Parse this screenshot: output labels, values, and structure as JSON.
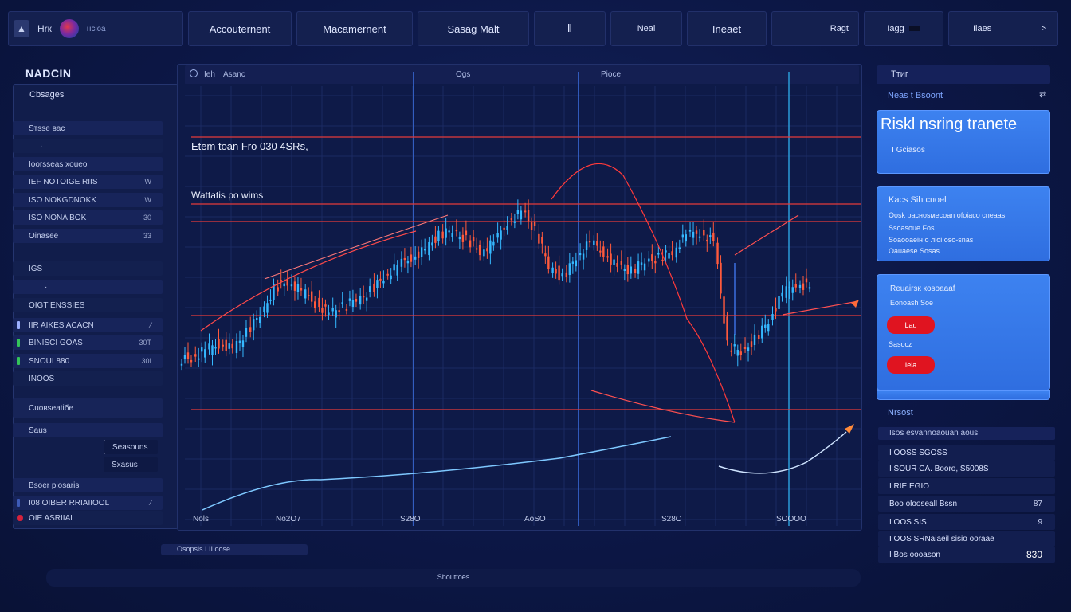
{
  "topbar": {
    "brand_text": "Hrк",
    "brand_sub": "нсюа",
    "items": [
      {
        "label": "Accouternent"
      },
      {
        "label": "Macamernent"
      },
      {
        "label": "Sasag Malt"
      },
      {
        "label": "Ⅱ"
      },
      {
        "label": "Neal"
      },
      {
        "label": "Ineaet"
      },
      {
        "label": "Ragt"
      },
      {
        "label": "Iagg"
      },
      {
        "label": "Iiaes"
      }
    ],
    "chevron": ">"
  },
  "left": {
    "title": "NADCIN",
    "header": "Cbsages",
    "rows": [
      {
        "label": "Sтsse вас",
        "value": ""
      },
      {
        "label": "",
        "value": ""
      },
      {
        "label": "Ioorsseas xoueo",
        "value": ""
      },
      {
        "label": "IEF NOTOIGE RIIS",
        "value": "W"
      },
      {
        "label": "ISO NOKGDNOKK",
        "value": "W"
      },
      {
        "label": "ISO NONA BOK",
        "value": "30"
      },
      {
        "label": "Oinasee",
        "value": "33"
      },
      {
        "label": "IGS",
        "value": ""
      },
      {
        "label": "",
        "value": ""
      },
      {
        "label": "OIGT ENSSIES",
        "value": ""
      },
      {
        "label": "IIR AIKES ACACN",
        "value": ""
      },
      {
        "label": "BINISCI GOAS",
        "value": "30T"
      },
      {
        "label": "SNOUI 880",
        "value": "30I"
      },
      {
        "label": "INOOS",
        "value": ""
      },
      {
        "label": "Cuoвseatiбe",
        "value": ""
      },
      {
        "label": "Saus",
        "value": ""
      },
      {
        "label": "Seasouns",
        "value": ""
      },
      {
        "label": "Sxasus",
        "value": ""
      },
      {
        "label": "Bsoer piosaris",
        "value": ""
      },
      {
        "label": "I08 OIBER RRIAIIOOL",
        "value": ""
      },
      {
        "label": "OIE ASRIIAL",
        "value": ""
      }
    ]
  },
  "chart": {
    "header_left": "Ieh",
    "header_mid": "Asanc",
    "header_center": "Ogs",
    "header_right": "Pioce",
    "note1": "Etem toan Fro 030 4SRs,",
    "note2": "Wattatis po wims",
    "xticks": [
      "Nols",
      "No2O7",
      "S28O",
      "AoSO",
      "S28O",
      "SOOOO"
    ],
    "colors": {
      "up": "#35b8ff",
      "down": "#ff5a3c",
      "redline": "#e43a3a",
      "trend": "#7ec8ff"
    }
  },
  "chart_data": {
    "type": "line",
    "title": "",
    "xlabel": "",
    "ylabel": "",
    "series": [
      {
        "values": [
          30,
          33,
          36,
          34,
          40,
          47,
          58,
          60,
          56,
          52,
          48,
          50,
          53,
          57,
          62,
          66,
          70,
          73,
          78,
          80,
          77,
          72,
          75,
          84,
          88,
          80,
          66,
          62,
          70,
          75,
          72,
          66,
          64,
          68,
          70,
          72,
          78,
          80,
          76,
          35,
          32,
          38,
          45,
          55,
          60,
          58
        ]
      }
    ]
  },
  "right": {
    "top_label": "Ттиг",
    "section_label": "Neas t Bsoont",
    "section_icon": "⇄",
    "card1": {
      "title": "Riskl nsring tranete",
      "sub": "Ⅰ  Gciasos"
    },
    "card2": {
      "title": "Kacs Sih спoel",
      "lines": [
        "Oosk pacнosмecoan ofoiaco cneaas",
        "Ssoasoue Fos",
        "Soaooaeiн o лioi oso-snas",
        "Oauaese Sosas"
      ]
    },
    "card3": {
      "title": "Reuairsк кosoaaaf",
      "sub": "Eonoash Soe",
      "btn1": "Lau",
      "mid": "Sasocz",
      "btn2": "Ieia"
    },
    "list_label": "Nrsost",
    "scroll_text": "Isos esvannoaouan aous",
    "rows": [
      {
        "label": "I OOSS SGOSS",
        "value": ""
      },
      {
        "label": "I SOUR CA. Booro, S5008S",
        "value": ""
      },
      {
        "label": "I RIE EGIO",
        "value": ""
      },
      {
        "label": "Boo olooseall Bssn",
        "value": "87"
      },
      {
        "label": "I OOS SIS",
        "value": "9"
      },
      {
        "label": "I OOS SRNaiaeil sisio ooraae",
        "value": ""
      },
      {
        "label": "I Bos oooason",
        "value": "830"
      }
    ]
  },
  "bottom": {
    "small": "Osopsis I II oose",
    "center": "Shouttoes"
  }
}
